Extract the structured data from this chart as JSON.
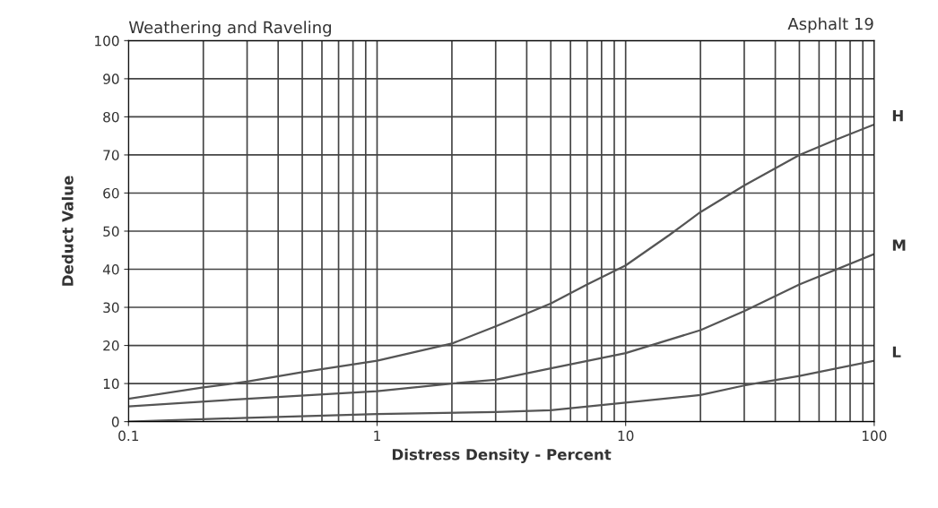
{
  "chart_data": {
    "type": "line",
    "title": "Weathering and Raveling",
    "xlabel": "Distress Density - Percent",
    "ylabel": "Deduct Value",
    "annotations": [
      "Asphalt 19"
    ],
    "log": "x",
    "grid": true,
    "legend": false,
    "marker": "none",
    "line_style": "solid",
    "xlim": [
      0.1,
      100
    ],
    "xticks": [
      0.1,
      1,
      10,
      100
    ],
    "ylim": [
      0,
      100
    ],
    "yticks": [
      0,
      10,
      20,
      30,
      40,
      50,
      60,
      70,
      80,
      90,
      100
    ],
    "series": [
      {
        "name": "H",
        "color": "#555555",
        "x": [
          0.1,
          0.2,
          0.3,
          0.5,
          1,
          2,
          3,
          5,
          7,
          10,
          15,
          20,
          30,
          50,
          70,
          100
        ],
        "values": [
          6,
          9,
          10.5,
          13,
          16,
          20.5,
          25,
          31,
          36,
          41,
          49,
          55,
          62,
          70,
          74,
          78
        ]
      },
      {
        "name": "M",
        "color": "#555555",
        "x": [
          0.1,
          0.3,
          1,
          2,
          3,
          5,
          10,
          20,
          30,
          50,
          100
        ],
        "values": [
          4,
          6,
          8,
          10,
          11,
          14,
          18,
          24,
          29,
          36,
          44
        ]
      },
      {
        "name": "L",
        "color": "#555555",
        "x": [
          0.1,
          0.3,
          1,
          3,
          5,
          10,
          20,
          30,
          50,
          100
        ],
        "values": [
          0,
          1,
          2,
          2.5,
          3,
          5,
          7,
          9.5,
          12,
          16
        ]
      }
    ]
  }
}
